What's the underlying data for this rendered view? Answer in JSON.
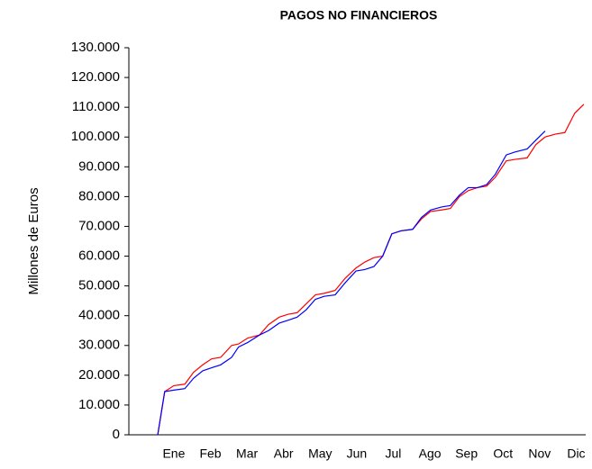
{
  "chart_data": {
    "type": "line",
    "title": "PAGOS NO FINANCIEROS",
    "y_label": "Millones de Euros",
    "x": [
      0.56,
      0.75,
      1.0,
      1.3,
      1.54,
      1.79,
      2.03,
      2.28,
      2.58,
      2.77,
      3.02,
      3.34,
      3.59,
      3.88,
      4.13,
      4.37,
      4.62,
      4.87,
      5.11,
      5.41,
      5.68,
      5.98,
      6.22,
      6.47,
      6.71,
      6.96,
      7.21,
      7.53,
      7.77,
      8.02,
      8.32,
      8.56,
      8.81,
      9.05,
      9.3,
      9.55,
      9.79,
      10.09,
      10.33,
      10.66,
      10.9,
      11.15,
      11.44,
      11.69,
      11.96,
      12.21
    ],
    "series": [
      {
        "color": "#ff0000",
        "values": [
          0,
          14500,
          16500,
          17000,
          21000,
          23500,
          25500,
          26000,
          30000,
          30500,
          32500,
          33500,
          37000,
          39500,
          40500,
          41000,
          44000,
          47000,
          47500,
          48500,
          52500,
          56000,
          58000,
          59500,
          60000,
          67500,
          68500,
          69000,
          72500,
          75000,
          75500,
          76000,
          80000,
          82000,
          83000,
          83500,
          86500,
          92000,
          92500,
          93000,
          97500,
          100000,
          101000,
          101500,
          108000,
          111000
        ]
      },
      {
        "color": "#0000ff",
        "values": [
          0,
          14500,
          15000,
          15500,
          19000,
          21500,
          22500,
          23500,
          26000,
          29500,
          31000,
          33500,
          35000,
          37500,
          38500,
          39500,
          42000,
          45500,
          46500,
          47000,
          51000,
          55000,
          55500,
          56500,
          60000,
          67500,
          68500,
          69000,
          73000,
          75500,
          76500,
          77000,
          80500,
          83000,
          83000,
          84000,
          87500,
          94000,
          95000,
          96000,
          99000,
          102000,
          null,
          null,
          null,
          null
        ]
      }
    ],
    "xlim": [
      -0.23,
      12.26
    ],
    "xticks": [
      {
        "value": 1,
        "label": "Ene"
      },
      {
        "value": 2,
        "label": "Feb"
      },
      {
        "value": 3,
        "label": "Mar"
      },
      {
        "value": 4,
        "label": "Abr"
      },
      {
        "value": 5,
        "label": "May"
      },
      {
        "value": 6,
        "label": "Jun"
      },
      {
        "value": 7,
        "label": "Jul"
      },
      {
        "value": 8,
        "label": "Ago"
      },
      {
        "value": 9,
        "label": "Sep"
      },
      {
        "value": 10,
        "label": "Oct"
      },
      {
        "value": 11,
        "label": "Nov"
      },
      {
        "value": 12,
        "label": "Dic"
      }
    ],
    "ylim": [
      0,
      130000
    ],
    "yticks": [
      0,
      {
        "value": 10000,
        "label": "10.000"
      },
      {
        "value": 20000,
        "label": "20.000"
      },
      {
        "value": 30000,
        "label": "30.000"
      },
      {
        "value": 40000,
        "label": "40.000"
      },
      {
        "value": 50000,
        "label": "50.000"
      },
      {
        "value": 60000,
        "label": "60.000"
      },
      {
        "value": 70000,
        "label": "70.000"
      },
      {
        "value": 80000,
        "label": "80.000"
      },
      {
        "value": 90000,
        "label": "90.000"
      },
      {
        "value": 100000,
        "label": "100.000"
      },
      {
        "value": 110000,
        "label": "110.000"
      },
      {
        "value": 120000,
        "label": "120.000"
      },
      {
        "value": 130000,
        "label": "130.000"
      }
    ],
    "grid": false
  }
}
